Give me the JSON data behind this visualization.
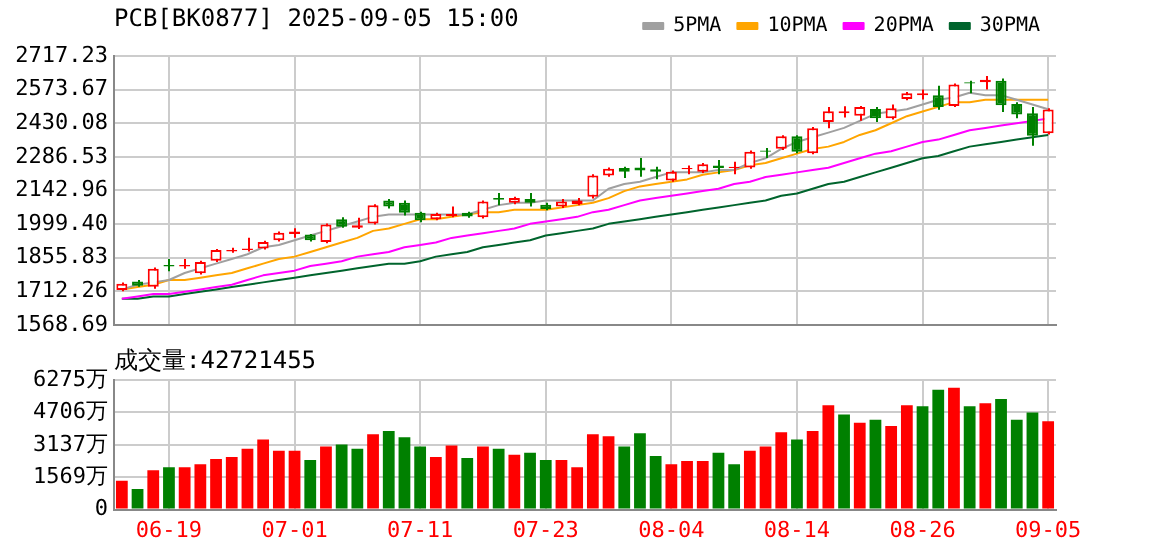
{
  "chart_data": [
    {
      "type": "candlestick",
      "title": "PCB[BK0877] 2025-09-05 15:00",
      "categories": [
        null,
        null,
        null,
        null,
        null,
        null,
        null,
        null,
        null,
        null,
        null,
        null,
        null,
        null,
        null,
        null,
        null,
        null,
        null,
        null,
        null,
        null,
        null,
        null,
        null,
        null,
        null,
        null,
        null,
        null,
        null,
        null,
        null,
        null,
        null,
        null,
        null,
        null,
        null,
        null,
        null,
        null,
        null,
        null,
        null,
        null,
        null,
        null,
        null,
        null,
        null,
        null,
        null,
        null,
        null,
        null,
        null,
        null,
        null,
        null
      ],
      "ohlc": [
        [
          1717,
          1749,
          1712,
          1744
        ],
        [
          1754,
          1760,
          1731,
          1736
        ],
        [
          1731,
          1813,
          1723,
          1808
        ],
        [
          1824,
          1850,
          1797,
          1818
        ],
        [
          1818,
          1850,
          1808,
          1824
        ],
        [
          1789,
          1842,
          1784,
          1837
        ],
        [
          1842,
          1893,
          1837,
          1888
        ],
        [
          1882,
          1898,
          1877,
          1888
        ],
        [
          1888,
          1941,
          1882,
          1895
        ],
        [
          1895,
          1928,
          1890,
          1922
        ],
        [
          1930,
          1967,
          1925,
          1962
        ],
        [
          1957,
          1981,
          1941,
          1967
        ],
        [
          1954,
          1957,
          1925,
          1930
        ],
        [
          1922,
          2002,
          1917,
          1997
        ],
        [
          2020,
          2028,
          1983,
          1988
        ],
        [
          1983,
          2026,
          1978,
          1994
        ],
        [
          2002,
          2084,
          1997,
          2079
        ],
        [
          2100,
          2106,
          2066,
          2074
        ],
        [
          2090,
          2100,
          2036,
          2047
        ],
        [
          2047,
          2052,
          2007,
          2015
        ],
        [
          2020,
          2047,
          2015,
          2042
        ],
        [
          2034,
          2074,
          2028,
          2042
        ],
        [
          2047,
          2052,
          2026,
          2031
        ],
        [
          2028,
          2100,
          2023,
          2095
        ],
        [
          2111,
          2132,
          2079,
          2103
        ],
        [
          2090,
          2116,
          2084,
          2111
        ],
        [
          2106,
          2132,
          2074,
          2090
        ],
        [
          2082,
          2090,
          2058,
          2063
        ],
        [
          2074,
          2106,
          2068,
          2095
        ],
        [
          2084,
          2111,
          2079,
          2100
        ],
        [
          2116,
          2212,
          2108,
          2207
        ],
        [
          2207,
          2241,
          2201,
          2236
        ],
        [
          2239,
          2244,
          2196,
          2223
        ],
        [
          2241,
          2281,
          2201,
          2228
        ],
        [
          2233,
          2244,
          2191,
          2223
        ],
        [
          2185,
          2228,
          2180,
          2223
        ],
        [
          2233,
          2249,
          2212,
          2239
        ],
        [
          2223,
          2260,
          2217,
          2255
        ],
        [
          2249,
          2273,
          2212,
          2239
        ],
        [
          2239,
          2265,
          2212,
          2244
        ],
        [
          2241,
          2313,
          2236,
          2308
        ],
        [
          2313,
          2324,
          2281,
          2308
        ],
        [
          2321,
          2379,
          2316,
          2374
        ],
        [
          2374,
          2379,
          2302,
          2308
        ],
        [
          2302,
          2414,
          2297,
          2409
        ],
        [
          2435,
          2499,
          2409,
          2481
        ],
        [
          2473,
          2502,
          2454,
          2481
        ],
        [
          2462,
          2504,
          2441,
          2499
        ],
        [
          2491,
          2499,
          2435,
          2451
        ],
        [
          2451,
          2510,
          2446,
          2494
        ],
        [
          2534,
          2563,
          2528,
          2558
        ],
        [
          2550,
          2574,
          2531,
          2558
        ],
        [
          2550,
          2590,
          2488,
          2499
        ],
        [
          2504,
          2600,
          2499,
          2595
        ],
        [
          2605,
          2611,
          2558,
          2600
        ],
        [
          2605,
          2632,
          2574,
          2616
        ],
        [
          2611,
          2621,
          2478,
          2507
        ],
        [
          2512,
          2520,
          2451,
          2467
        ],
        [
          2473,
          2499,
          2334,
          2377
        ],
        [
          2387,
          2494,
          2382,
          2489
        ]
      ],
      "colors": [
        "#ff0000",
        "#008000",
        "#ff0000",
        "#008000",
        "#ff0000",
        "#ff0000",
        "#ff0000",
        "#ff0000",
        "#ff0000",
        "#ff0000",
        "#ff0000",
        "#ff0000",
        "#008000",
        "#ff0000",
        "#008000",
        "#ff0000",
        "#ff0000",
        "#008000",
        "#008000",
        "#008000",
        "#ff0000",
        "#ff0000",
        "#008000",
        "#ff0000",
        "#008000",
        "#ff0000",
        "#008000",
        "#008000",
        "#ff0000",
        "#ff0000",
        "#ff0000",
        "#ff0000",
        "#008000",
        "#008000",
        "#008000",
        "#ff0000",
        "#ff0000",
        "#ff0000",
        "#008000",
        "#ff0000",
        "#ff0000",
        "#008000",
        "#ff0000",
        "#008000",
        "#ff0000",
        "#ff0000",
        "#ff0000",
        "#ff0000",
        "#008000",
        "#ff0000",
        "#ff0000",
        "#ff0000",
        "#008000",
        "#ff0000",
        "#008000",
        "#ff0000",
        "#008000",
        "#008000",
        "#008000",
        "#ff0000"
      ],
      "series": [
        {
          "name": "5PMA",
          "type": "line",
          "color": "#a0a0a0",
          "values": [
            1720,
            1740,
            1750,
            1760,
            1790,
            1810,
            1830,
            1850,
            1870,
            1900,
            1910,
            1930,
            1950,
            1970,
            1990,
            2010,
            2030,
            2040,
            2040,
            2040,
            2040,
            2040,
            2040,
            2060,
            2080,
            2090,
            2090,
            2100,
            2100,
            2100,
            2100,
            2150,
            2170,
            2180,
            2200,
            2220,
            2220,
            2220,
            2230,
            2230,
            2260,
            2280,
            2320,
            2350,
            2370,
            2390,
            2410,
            2440,
            2470,
            2480,
            2490,
            2510,
            2530,
            2540,
            2560,
            2550,
            2550,
            2530,
            2510,
            2490
          ]
        },
        {
          "name": "10PMA",
          "type": "line",
          "color": "#ffa500",
          "values": [
            1720,
            1730,
            1740,
            1760,
            1760,
            1770,
            1780,
            1790,
            1810,
            1830,
            1850,
            1860,
            1880,
            1900,
            1920,
            1940,
            1970,
            1980,
            2000,
            2020,
            2020,
            2030,
            2040,
            2050,
            2050,
            2060,
            2060,
            2060,
            2070,
            2080,
            2090,
            2110,
            2140,
            2160,
            2170,
            2180,
            2190,
            2210,
            2220,
            2230,
            2250,
            2260,
            2280,
            2300,
            2320,
            2330,
            2350,
            2380,
            2400,
            2430,
            2460,
            2480,
            2500,
            2520,
            2520,
            2530,
            2530,
            2530,
            2530,
            2530
          ]
        },
        {
          "name": "20PMA",
          "type": "line",
          "color": "#ff00ff",
          "values": [
            1680,
            1690,
            1700,
            1700,
            1710,
            1720,
            1730,
            1740,
            1760,
            1780,
            1790,
            1800,
            1820,
            1830,
            1840,
            1860,
            1870,
            1880,
            1900,
            1910,
            1920,
            1940,
            1950,
            1960,
            1970,
            1980,
            2000,
            2010,
            2020,
            2030,
            2050,
            2060,
            2080,
            2100,
            2110,
            2120,
            2130,
            2140,
            2150,
            2170,
            2180,
            2200,
            2210,
            2220,
            2230,
            2240,
            2260,
            2280,
            2300,
            2310,
            2330,
            2350,
            2360,
            2380,
            2400,
            2410,
            2420,
            2430,
            2440,
            2450
          ]
        },
        {
          "name": "30PMA",
          "type": "line",
          "color": "#00642d",
          "values": [
            1680,
            1680,
            1690,
            1690,
            1700,
            1710,
            1720,
            1730,
            1740,
            1750,
            1760,
            1770,
            1780,
            1790,
            1800,
            1810,
            1820,
            1830,
            1830,
            1840,
            1860,
            1870,
            1880,
            1900,
            1910,
            1920,
            1930,
            1950,
            1960,
            1970,
            1980,
            2000,
            2010,
            2020,
            2030,
            2040,
            2050,
            2060,
            2070,
            2080,
            2090,
            2100,
            2120,
            2130,
            2150,
            2170,
            2180,
            2200,
            2220,
            2240,
            2260,
            2280,
            2290,
            2310,
            2330,
            2340,
            2350,
            2360,
            2370,
            2380
          ]
        }
      ],
      "ylim": [
        1568.69,
        2717.23
      ],
      "yticks": [
        1568.69,
        1712.26,
        1855.83,
        {
          "value": 1999.4,
          "label": "1999.40"
        },
        2142.96,
        2286.53,
        2430.08,
        2573.67,
        2717.23
      ],
      "grid": true,
      "legend": "top right",
      "tick_labels": "y"
    },
    {
      "type": "bar",
      "title": "成交量:42721455",
      "categories": [
        null,
        null,
        null,
        "06-19",
        null,
        null,
        null,
        null,
        null,
        null,
        null,
        "07-01",
        null,
        null,
        null,
        null,
        null,
        null,
        null,
        "07-11",
        null,
        null,
        null,
        null,
        null,
        null,
        null,
        "07-23",
        null,
        null,
        null,
        null,
        null,
        null,
        null,
        "08-04",
        null,
        null,
        null,
        null,
        null,
        null,
        null,
        "08-14",
        null,
        null,
        null,
        null,
        null,
        null,
        null,
        "08-26",
        null,
        null,
        null,
        null,
        null,
        null,
        null,
        "09-05"
      ],
      "values": [
        1400,
        1000,
        1900,
        2050,
        2050,
        2200,
        2450,
        2550,
        2950,
        3400,
        2850,
        2850,
        2400,
        3050,
        3150,
        2950,
        3650,
        3800,
        3500,
        3050,
        2550,
        3100,
        2500,
        3050,
        2950,
        2650,
        2750,
        2400,
        2400,
        2050,
        3650,
        3550,
        3050,
        3700,
        2600,
        2200,
        2350,
        2350,
        2750,
        2200,
        2850,
        3050,
        3750,
        3400,
        3800,
        5050,
        4600,
        4200,
        4350,
        4050,
        5050,
        5000,
        5800,
        5900,
        5000,
        5150,
        5350,
        4350,
        4700,
        4272
      ],
      "colors": [
        "#ff0000",
        "#008000",
        "#ff0000",
        "#008000",
        "#ff0000",
        "#ff0000",
        "#ff0000",
        "#ff0000",
        "#ff0000",
        "#ff0000",
        "#ff0000",
        "#ff0000",
        "#008000",
        "#ff0000",
        "#008000",
        "#008000",
        "#ff0000",
        "#008000",
        "#008000",
        "#008000",
        "#ff0000",
        "#ff0000",
        "#008000",
        "#ff0000",
        "#008000",
        "#ff0000",
        "#008000",
        "#008000",
        "#ff0000",
        "#ff0000",
        "#ff0000",
        "#ff0000",
        "#008000",
        "#008000",
        "#008000",
        "#ff0000",
        "#ff0000",
        "#ff0000",
        "#008000",
        "#008000",
        "#ff0000",
        "#ff0000",
        "#ff0000",
        "#008000",
        "#ff0000",
        "#ff0000",
        "#008000",
        "#ff0000",
        "#008000",
        "#ff0000",
        "#ff0000",
        "#008000",
        "#008000",
        "#ff0000",
        "#008000",
        "#ff0000",
        "#008000",
        "#008000",
        "#008000",
        "#ff0000"
      ],
      "ylim": [
        0,
        6275
      ],
      "yticks": [
        0,
        {
          "value": 1569,
          "label": "1569万"
        },
        {
          "value": 3137,
          "label": "3137万"
        },
        {
          "value": 4706,
          "label": "4706万"
        },
        {
          "value": 6275,
          "label": "6275万"
        }
      ],
      "grid": true
    }
  ]
}
